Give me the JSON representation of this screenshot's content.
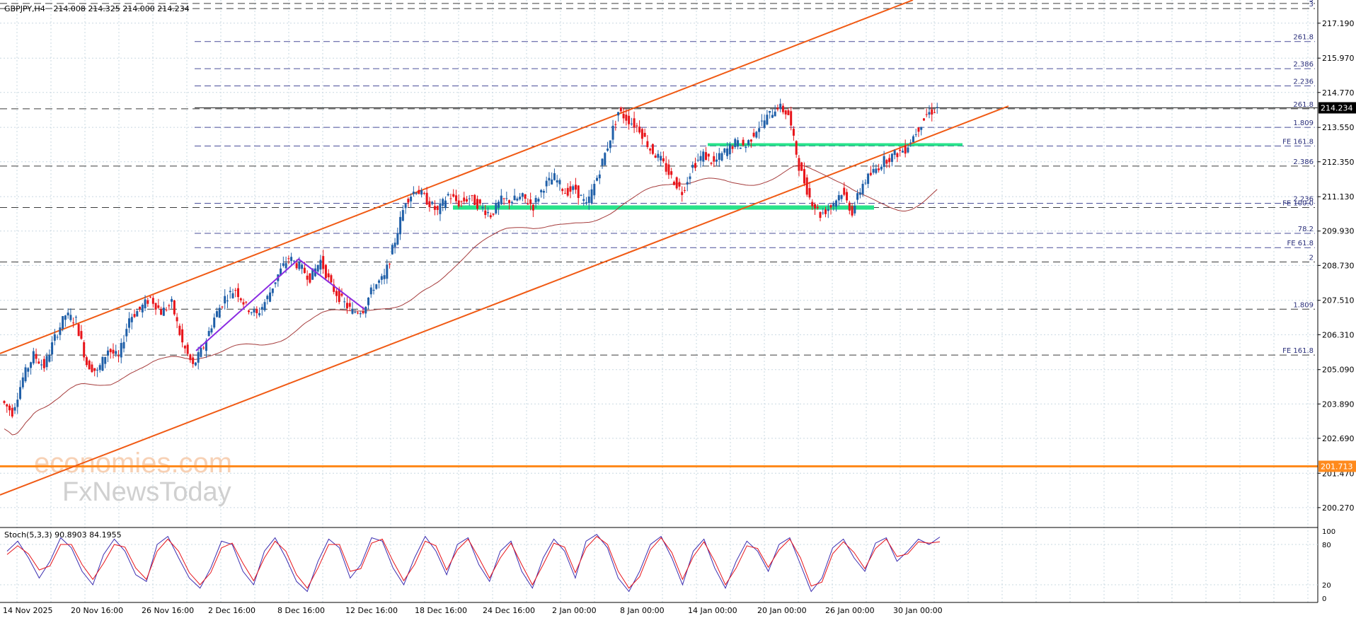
{
  "header": {
    "symbol": "GBPJPY,H4",
    "ohlc": "214.008 214.325 214.000 214.234"
  },
  "stoch": {
    "label": "Stoch(5,3,3) 90.8903 84.1955"
  },
  "watermark": {
    "line1": "economies.com",
    "line2": "FxNewsToday"
  },
  "colors": {
    "bull": "#1f5fa8",
    "bear": "#e8141a",
    "ma": "#a53b3b",
    "channel": "#f05a14",
    "support": "#ff8a1c",
    "zone": "#27e38a",
    "wave": "#8a2be2",
    "grid": "#c9d8e2",
    "fib": "#4a4f9a",
    "resist": "#3c3c3c",
    "stochMain": "#3a2db0",
    "stochSig": "#e8141a"
  },
  "chart_data": [
    {
      "type": "candlestick",
      "title": "GBPJPY,H4",
      "ylim": [
        199.6,
        218.0
      ],
      "y_ticks": [
        "217.190",
        "215.970",
        "214.770",
        "213.550",
        "212.350",
        "211.130",
        "209.930",
        "208.730",
        "207.510",
        "206.310",
        "205.090",
        "203.890",
        "202.690",
        "201.470",
        "200.270"
      ],
      "x_ticks": [
        "14 Nov 2025",
        "20 Nov 16:00",
        "26 Nov 16:00",
        "2 Dec 16:00",
        "8 Dec 16:00",
        "12 Dec 16:00",
        "18 Dec 16:00",
        "24 Dec 16:00",
        "2 Jan 00:00",
        "8 Jan 00:00",
        "14 Jan 00:00",
        "20 Jan 00:00",
        "26 Jan 00:00",
        "30 Jan 00:00"
      ],
      "last_price": 214.234,
      "last_price_label": "214.234",
      "support_level": 201.713,
      "support_label": "201.713",
      "ohlc_last": {
        "open": 214.008,
        "high": 214.325,
        "low": 214.0,
        "close": 214.234
      },
      "horizontal_levels": [
        {
          "price": 217.88,
          "label": "3"
        },
        {
          "price": 217.7,
          "label": "3"
        },
        {
          "price": 216.55,
          "label": "261.8"
        },
        {
          "price": 215.6,
          "label": "2.386"
        },
        {
          "price": 215.0,
          "label": "2.236"
        },
        {
          "price": 214.2,
          "label": "261.8"
        },
        {
          "price": 213.55,
          "label": "1.809"
        },
        {
          "price": 212.9,
          "label": "FE 161.8"
        },
        {
          "price": 212.2,
          "label": "2.386"
        },
        {
          "price": 210.9,
          "label": "2.236"
        },
        {
          "price": 210.75,
          "label": "FE 100.0"
        },
        {
          "price": 209.85,
          "label": "78.2"
        },
        {
          "price": 209.35,
          "label": "FE 61.8"
        },
        {
          "price": 208.85,
          "label": "2"
        },
        {
          "price": 207.2,
          "label": "1.809"
        },
        {
          "price": 205.6,
          "label": "FE 161.8"
        }
      ],
      "ohlc_path": [
        204.0,
        203.6,
        204.8,
        205.6,
        205.2,
        206.2,
        207.0,
        206.8,
        205.3,
        205.0,
        205.8,
        205.5,
        206.9,
        207.2,
        207.6,
        207.1,
        207.4,
        206.0,
        205.2,
        205.9,
        206.9,
        207.6,
        207.9,
        207.3,
        207.0,
        207.6,
        208.4,
        209.0,
        208.7,
        208.3,
        208.9,
        208.0,
        207.5,
        207.1,
        207.2,
        208.0,
        208.3,
        209.6,
        211.0,
        211.4,
        211.0,
        210.6,
        211.2,
        210.9,
        211.1,
        210.8,
        210.5,
        211.0,
        211.0,
        211.1,
        210.8,
        211.5,
        211.8,
        211.3,
        211.4,
        210.8,
        211.8,
        212.9,
        214.1,
        213.8,
        213.5,
        212.8,
        212.4,
        211.8,
        211.3,
        212.2,
        212.6,
        212.3,
        212.7,
        213.0,
        212.9,
        213.5,
        213.9,
        214.3,
        214.0,
        212.2,
        211.1,
        210.5,
        210.8,
        211.3,
        210.6,
        211.6,
        212.0,
        212.4,
        212.6,
        212.8,
        213.4,
        214.0,
        214.234
      ]
    },
    {
      "type": "line",
      "title": "Stoch(5,3,3) 90.8903 84.1955",
      "ylim": [
        0,
        100
      ],
      "y_ticks": [
        "100",
        "80",
        "20",
        "0"
      ],
      "series": [
        {
          "name": "Main",
          "values": [
            70,
            85,
            60,
            30,
            55,
            90,
            75,
            40,
            20,
            65,
            88,
            70,
            35,
            25,
            80,
            92,
            60,
            30,
            15,
            45,
            85,
            80,
            40,
            20,
            70,
            90,
            60,
            25,
            10,
            55,
            88,
            75,
            30,
            50,
            90,
            85,
            45,
            20,
            60,
            92,
            70,
            35,
            80,
            90,
            50,
            25,
            70,
            85,
            40,
            15,
            60,
            88,
            70,
            30,
            85,
            95,
            75,
            30,
            10,
            40,
            80,
            92,
            60,
            20,
            70,
            88,
            45,
            15,
            55,
            85,
            70,
            40,
            80,
            90,
            50,
            10,
            30,
            75,
            88,
            60,
            40,
            82,
            90,
            55,
            70,
            88,
            80,
            91
          ]
        },
        {
          "name": "Signal",
          "values": [
            65,
            78,
            66,
            42,
            48,
            80,
            80,
            50,
            28,
            52,
            80,
            76,
            45,
            28,
            70,
            88,
            70,
            38,
            20,
            38,
            75,
            82,
            52,
            26,
            60,
            85,
            70,
            35,
            15,
            45,
            80,
            80,
            40,
            44,
            82,
            88,
            55,
            26,
            50,
            85,
            78,
            42,
            72,
            88,
            60,
            30,
            60,
            82,
            50,
            20,
            50,
            82,
            76,
            38,
            75,
            92,
            80,
            40,
            15,
            32,
            72,
            90,
            68,
            28,
            62,
            84,
            55,
            20,
            45,
            78,
            74,
            46,
            72,
            88,
            60,
            18,
            24,
            66,
            84,
            68,
            44,
            74,
            88,
            62,
            66,
            84,
            82,
            84
          ]
        }
      ]
    }
  ]
}
